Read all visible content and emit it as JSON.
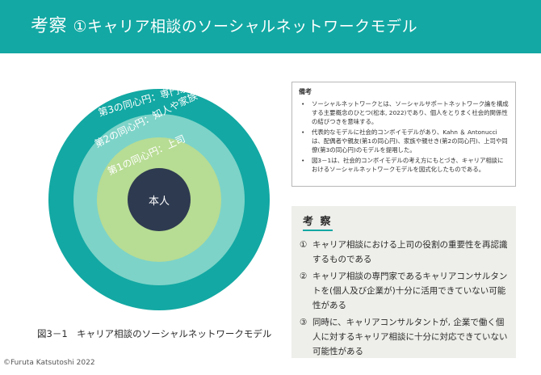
{
  "header": {
    "title_main": "考察",
    "title_sub": "①キャリア相談のソーシャルネットワークモデル",
    "background_color": "#13a8a3"
  },
  "diagram": {
    "center_label": "本人",
    "rings": [
      {
        "label": "第1の同心円：上司",
        "color": "#b7dc93"
      },
      {
        "label": "第2の同心円：知人や家族",
        "color": "#7dd3c8"
      },
      {
        "label": "第3の同心円：専門家",
        "color": "#13a8a3"
      }
    ],
    "center_color": "#2e3a50",
    "caption": "図3－1　キャリア相談のソーシャルネットワークモデル"
  },
  "notes": {
    "title": "備考",
    "items": [
      "ソーシャルネットワークとは、ソーシャルサポートネットワーク論を構成する主要概念のひとつ(松本, 2022)であり、個人をとりまく社会的関係性の結びつきを意味する。",
      "代表的なモデルに社会的コンボイモデルがあり、Kahn ＆ Antonucciは、配偶者や親友(第1の同心円)、家族や親せき(第2の同心円)、上司や同僚(第3の同心円)のモデルを提唱した。",
      "図3－1は、社会的コンボイモデルの考え方にもとづき、キャリア相談におけるソーシャルネットワークモデルを図式化したものである。"
    ]
  },
  "discussion": {
    "title": "考 察",
    "items": [
      {
        "num": "①",
        "text": "キャリア相談における上司の役割の重要性を再認識するものである"
      },
      {
        "num": "②",
        "text": "キャリア相談の専門家であるキャリアコンサルタントを(個人及び企業が)十分に活用できていない可能性がある"
      },
      {
        "num": "③",
        "text": "同時に、キャリアコンサルタントが, 企業で働く個人に対するキャリア相談に十分に対応できていない可能性がある"
      }
    ],
    "accent_color": "#13a8a3"
  },
  "footer": {
    "copyright": "©Furuta Katsutoshi 2022"
  }
}
